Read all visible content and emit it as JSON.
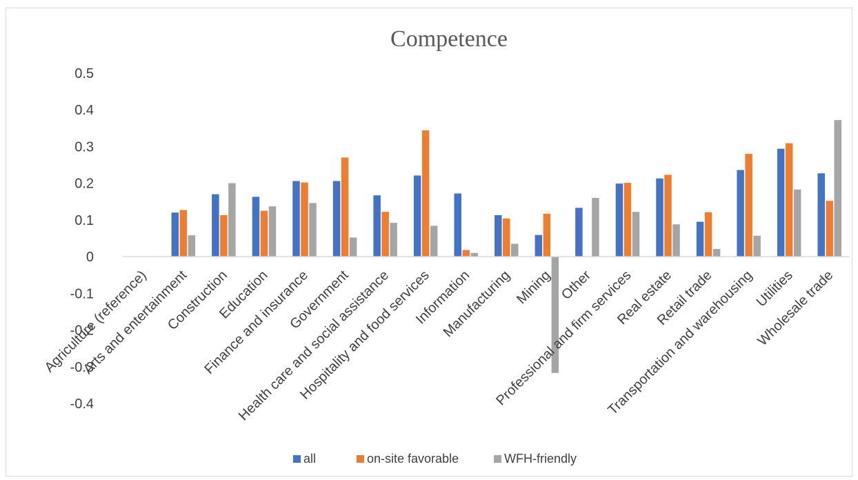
{
  "chart_data": {
    "type": "bar",
    "title": "Competence",
    "xlabel": "",
    "ylabel": "",
    "ylim": [
      -0.4,
      0.5
    ],
    "yticks": [
      "0.5",
      "0.4",
      "0.3",
      "0.2",
      "0.1",
      "0",
      "-0.1",
      "-0.2",
      "-0.3",
      "-0.4"
    ],
    "categories": [
      "Agriculture (reference)",
      "Arts and entertainment",
      "Construction",
      "Education",
      "Finance and insurance",
      "Government",
      "Health care and social assistance",
      "Hospitality and food services",
      "Information",
      "Manufacturing",
      "Mining",
      "Other",
      "Professional and firm services",
      "Real estate",
      "Retail trade",
      "Transportation and warehousing",
      "Utilities",
      "Wholesale trade"
    ],
    "series": [
      {
        "name": "all",
        "color": "#4472c4",
        "values": [
          0,
          0.12,
          0.17,
          0.163,
          0.206,
          0.206,
          0.167,
          0.221,
          0.172,
          0.113,
          0.059,
          0.133,
          0.199,
          0.213,
          0.095,
          0.236,
          0.294,
          0.227
        ]
      },
      {
        "name": "on-site favorable",
        "color": "#ed7d31",
        "values": [
          0,
          0.127,
          0.113,
          0.125,
          0.202,
          0.27,
          0.122,
          0.344,
          0.018,
          0.104,
          0.117,
          null,
          0.201,
          0.223,
          0.121,
          0.28,
          0.309,
          0.152
        ]
      },
      {
        "name": "WFH-friendly",
        "color": "#a5a5a5",
        "values": [
          0,
          0.058,
          0.2,
          0.137,
          0.146,
          0.052,
          0.092,
          0.084,
          0.01,
          0.035,
          -0.317,
          0.16,
          0.122,
          0.088,
          0.021,
          0.057,
          0.183,
          0.372
        ]
      }
    ],
    "grid": false,
    "legend_position": "bottom"
  }
}
